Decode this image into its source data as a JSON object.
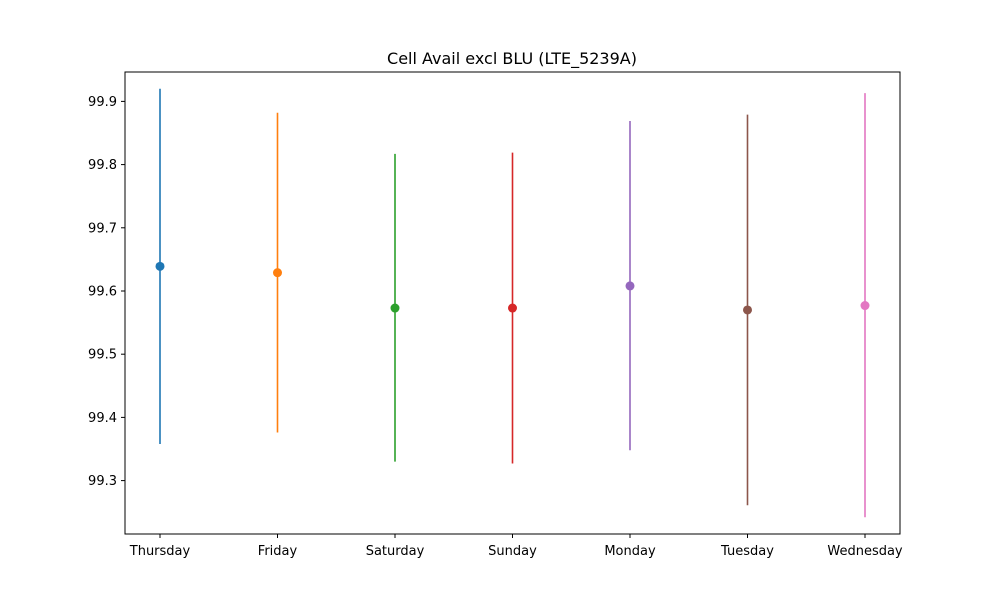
{
  "chart_data": {
    "type": "errorbar",
    "title": "Cell Avail excl BLU (LTE_5239A)",
    "xlabel": "",
    "ylabel": "",
    "categories": [
      "Thursday",
      "Friday",
      "Saturday",
      "Sunday",
      "Monday",
      "Tuesday",
      "Wednesday"
    ],
    "values": [
      99.639,
      99.629,
      99.573,
      99.573,
      99.608,
      99.57,
      99.577
    ],
    "lower": [
      99.358,
      99.376,
      99.33,
      99.327,
      99.348,
      99.261,
      99.242
    ],
    "upper": [
      99.92,
      99.882,
      99.817,
      99.819,
      99.869,
      99.879,
      99.913
    ],
    "colors": [
      "#1f77b4",
      "#ff7f0e",
      "#2ca02c",
      "#d62728",
      "#9467bd",
      "#8c564b",
      "#e377c2"
    ],
    "ylim": [
      99.2155,
      99.9465
    ],
    "yticks": [
      "99.3",
      "99.4",
      "99.5",
      "99.6",
      "99.7",
      "99.8",
      "99.9"
    ],
    "grid": false,
    "legend": "none"
  }
}
